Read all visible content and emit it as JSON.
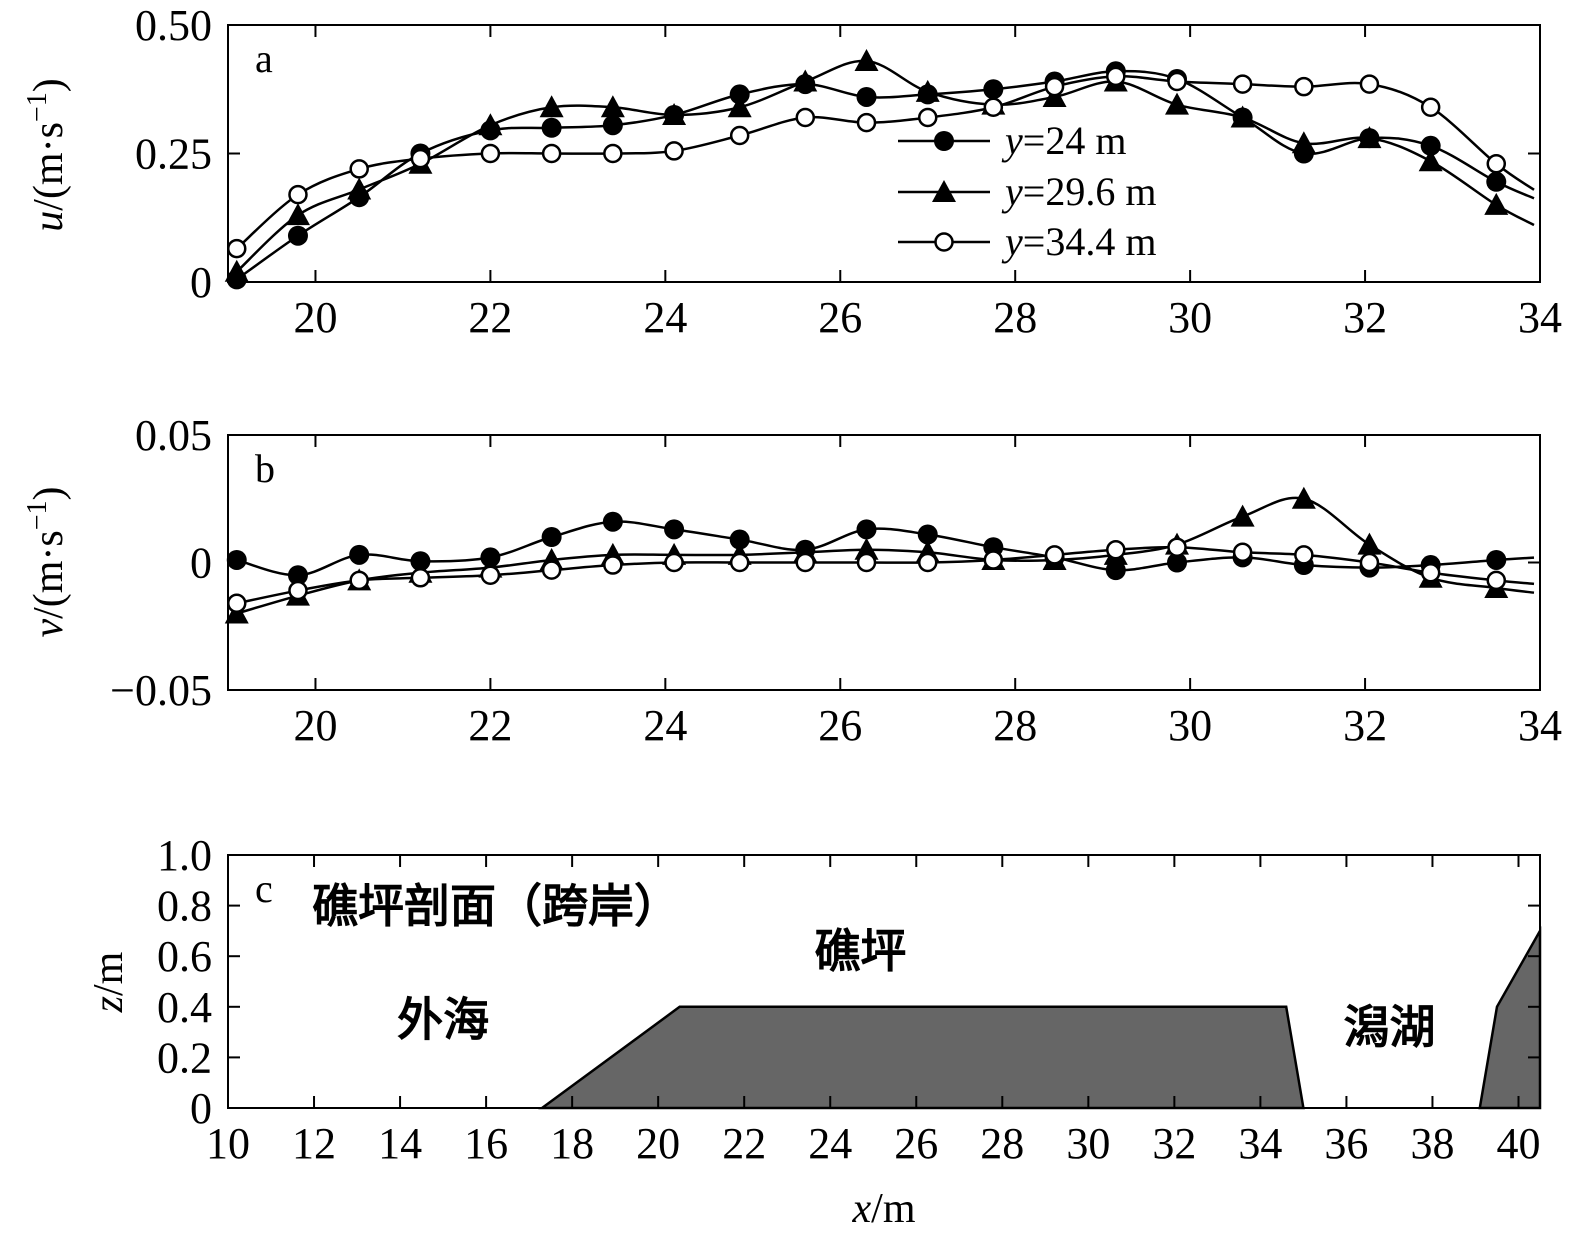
{
  "chart_data": [
    {
      "panel": "a",
      "type": "line",
      "ylabel": {
        "var": "u",
        "unit": "/(m·s",
        "sup": "−1",
        "close": ")"
      },
      "xlim": [
        19,
        34
      ],
      "ylim": [
        0,
        0.5
      ],
      "xticks": [
        "20",
        "22",
        "24",
        "26",
        "28",
        "30",
        "32",
        "34"
      ],
      "yticks": [
        "0",
        "0.25",
        "0.50"
      ],
      "x": [
        19.1,
        19.8,
        20.5,
        21.2,
        22.0,
        22.7,
        23.4,
        24.1,
        24.85,
        25.6,
        26.3,
        27.0,
        27.75,
        28.45,
        29.15,
        29.85,
        30.6,
        31.3,
        32.05,
        32.75,
        33.5
      ],
      "series": [
        {
          "name": "y=24 m",
          "legend_var": "y",
          "legend_rest": "=24 m",
          "marker": "filled-circle",
          "values": [
            0.005,
            0.09,
            0.165,
            0.25,
            0.295,
            0.3,
            0.305,
            0.325,
            0.365,
            0.385,
            0.36,
            0.365,
            0.375,
            0.39,
            0.41,
            0.395,
            0.32,
            0.25,
            0.28,
            0.265,
            0.195
          ]
        },
        {
          "name": "y=29.6 m",
          "legend_var": "y",
          "legend_rest": "=29.6 m",
          "marker": "filled-triangle",
          "values": [
            0.02,
            0.13,
            0.18,
            0.23,
            0.305,
            0.34,
            0.34,
            0.325,
            0.34,
            0.39,
            0.43,
            0.37,
            0.345,
            0.36,
            0.39,
            0.345,
            0.32,
            0.27,
            0.28,
            0.235,
            0.15
          ]
        },
        {
          "name": "y=34.4 m",
          "legend_var": "y",
          "legend_rest": "=34.4 m",
          "marker": "open-circle",
          "values": [
            0.065,
            0.17,
            0.22,
            0.24,
            0.25,
            0.25,
            0.25,
            0.255,
            0.285,
            0.32,
            0.31,
            0.32,
            0.34,
            0.38,
            0.4,
            0.39,
            0.385,
            0.38,
            0.385,
            0.34,
            0.23
          ]
        }
      ],
      "legend_position": "center-right"
    },
    {
      "panel": "b",
      "type": "line",
      "ylabel": {
        "var": "v",
        "unit": "/(m·s",
        "sup": "−1",
        "close": ")"
      },
      "xlim": [
        19,
        34
      ],
      "ylim": [
        -0.05,
        0.05
      ],
      "xticks": [
        "20",
        "22",
        "24",
        "26",
        "28",
        "30",
        "32",
        "34"
      ],
      "yticks": [
        "−0.05",
        "0",
        "0.05"
      ],
      "x": [
        19.1,
        19.8,
        20.5,
        21.2,
        22.0,
        22.7,
        23.4,
        24.1,
        24.85,
        25.6,
        26.3,
        27.0,
        27.75,
        28.45,
        29.15,
        29.85,
        30.6,
        31.3,
        32.05,
        32.75,
        33.5
      ],
      "series": [
        {
          "name": "y=24 m",
          "marker": "filled-circle",
          "values": [
            0.001,
            -0.005,
            0.003,
            0.0005,
            0.002,
            0.01,
            0.016,
            0.013,
            0.009,
            0.005,
            0.013,
            0.011,
            0.006,
            0.002,
            -0.003,
            0.0,
            0.002,
            -0.001,
            -0.002,
            -0.001,
            0.001
          ]
        },
        {
          "name": "y=29.6 m",
          "marker": "filled-triangle",
          "values": [
            -0.02,
            -0.013,
            -0.007,
            -0.004,
            -0.002,
            0.001,
            0.003,
            0.003,
            0.003,
            0.004,
            0.005,
            0.004,
            0.001,
            0.001,
            0.003,
            0.007,
            0.018,
            0.025,
            0.007,
            -0.006,
            -0.01
          ]
        },
        {
          "name": "y=34.4 m",
          "marker": "open-circle",
          "values": [
            -0.016,
            -0.011,
            -0.007,
            -0.006,
            -0.005,
            -0.003,
            -0.001,
            0.0,
            0.0,
            0.0,
            0.0,
            0.0,
            0.001,
            0.003,
            0.005,
            0.006,
            0.004,
            0.003,
            0.0,
            -0.004,
            -0.007
          ]
        }
      ]
    },
    {
      "panel": "c",
      "type": "area",
      "title": "礁坪剖面（跨岸）",
      "xlabel": {
        "var": "x",
        "unit": "/m"
      },
      "ylabel": {
        "var": "z",
        "unit": "/m"
      },
      "xlim": [
        10,
        40.5
      ],
      "ylim": [
        0,
        1.0
      ],
      "xticks": [
        "10",
        "12",
        "14",
        "16",
        "18",
        "20",
        "22",
        "24",
        "26",
        "28",
        "30",
        "32",
        "34",
        "36",
        "38",
        "40"
      ],
      "yticks": [
        "0",
        "0.2",
        "0.4",
        "0.6",
        "0.8",
        "1.0"
      ],
      "reef_profile": {
        "x": [
          17.3,
          20.5,
          34.6,
          35.0
        ],
        "z": [
          0,
          0.4,
          0.4,
          0
        ]
      },
      "shore_profile": {
        "x": [
          39.1,
          39.5,
          40.5,
          40.5
        ],
        "z": [
          0,
          0.4,
          0.7,
          0
        ]
      },
      "fill_color": "#666666",
      "region_labels": [
        {
          "text": "外海",
          "x": 15.0,
          "z": 0.35
        },
        {
          "text": "礁坪",
          "x": 24.7,
          "z": 0.62
        },
        {
          "text": "潟湖",
          "x": 37.0,
          "z": 0.32
        }
      ]
    }
  ]
}
